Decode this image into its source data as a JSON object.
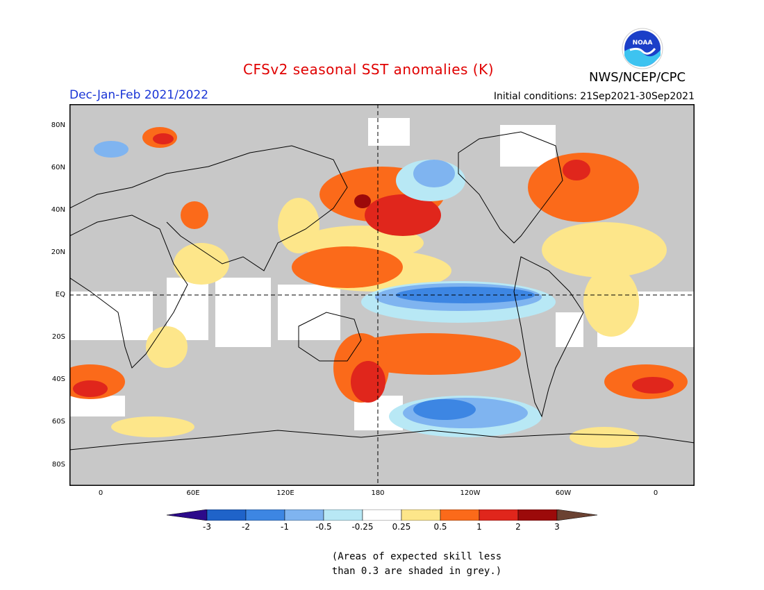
{
  "header": {
    "title": "CFSv2 seasonal SST anomalies (K)",
    "season": "Dec-Jan-Feb 2021/2022",
    "initial_conditions": "Initial conditions: 21Sep2021-30Sep2021",
    "agency": "NWS/NCEP/CPC",
    "logo_text": "NOAA"
  },
  "map": {
    "lat_labels": [
      "80N",
      "60N",
      "40N",
      "20N",
      "EQ",
      "20S",
      "40S",
      "60S",
      "80S"
    ],
    "lon_labels": [
      "0",
      "60E",
      "120E",
      "180",
      "120W",
      "60W",
      "0"
    ],
    "land_color": "#c8c8c8"
  },
  "colorbar": {
    "labels": [
      "-3",
      "-2",
      "-1",
      "-0.5",
      "-0.25",
      "0.25",
      "0.5",
      "1",
      "2",
      "3"
    ],
    "colors": [
      "#2c0a8a",
      "#1f63c9",
      "#3d86e3",
      "#7fb4f0",
      "#b8e8f5",
      "#ffffff",
      "#fde68a",
      "#fb6a1a",
      "#e0261c",
      "#9c0a0a",
      "#6b4232"
    ]
  },
  "note": {
    "line1": "(Areas of expected skill less",
    "line2": "than 0.3 are shaded in grey.)"
  }
}
